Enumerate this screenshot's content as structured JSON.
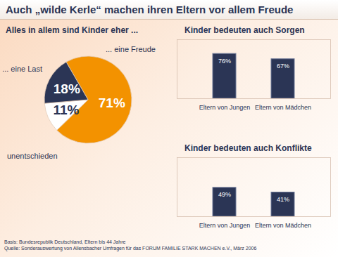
{
  "title": "Auch „wilde Kerle“ machen ihren Eltern vor allem Freude",
  "notes": [
    "Basis: Bundesrepublik Deutschland, Eltern bis 44 Jahre",
    "Quelle: Sonderauswertung von Allensbacher Umfragen für das FORUM FAMILIE STARK MACHEN e.V., März 2006"
  ],
  "chart_data": [
    {
      "type": "pie",
      "title": "Alles in allem sind Kinder eher ...",
      "categories": [
        "... eine Freude",
        "unentschieden",
        "... eine Last"
      ],
      "values": [
        71,
        11,
        18
      ],
      "value_labels": [
        "71%",
        "11%",
        "18%"
      ],
      "colors": [
        "#f39200",
        "#ffffff",
        "#2b3555"
      ],
      "data_labels": true
    },
    {
      "type": "bar",
      "title": "Kinder bedeuten auch Sorgen",
      "categories": [
        "Eltern von Jungen",
        "Eltern von Mädchen"
      ],
      "values": [
        76,
        67
      ],
      "value_labels": [
        "76%",
        "67%"
      ],
      "color": "#2b3555",
      "ylim": [
        0,
        100
      ],
      "yticks": [],
      "data_labels": true,
      "tick_labels": "x"
    },
    {
      "type": "bar",
      "title": "Kinder bedeuten auch Konflikte",
      "categories": [
        "Eltern von Jungen",
        "Eltern von Mädchen"
      ],
      "values": [
        49,
        41
      ],
      "value_labels": [
        "49%",
        "41%"
      ],
      "color": "#2b3555",
      "ylim": [
        0,
        100
      ],
      "yticks": [],
      "data_labels": true,
      "tick_labels": "x"
    }
  ]
}
